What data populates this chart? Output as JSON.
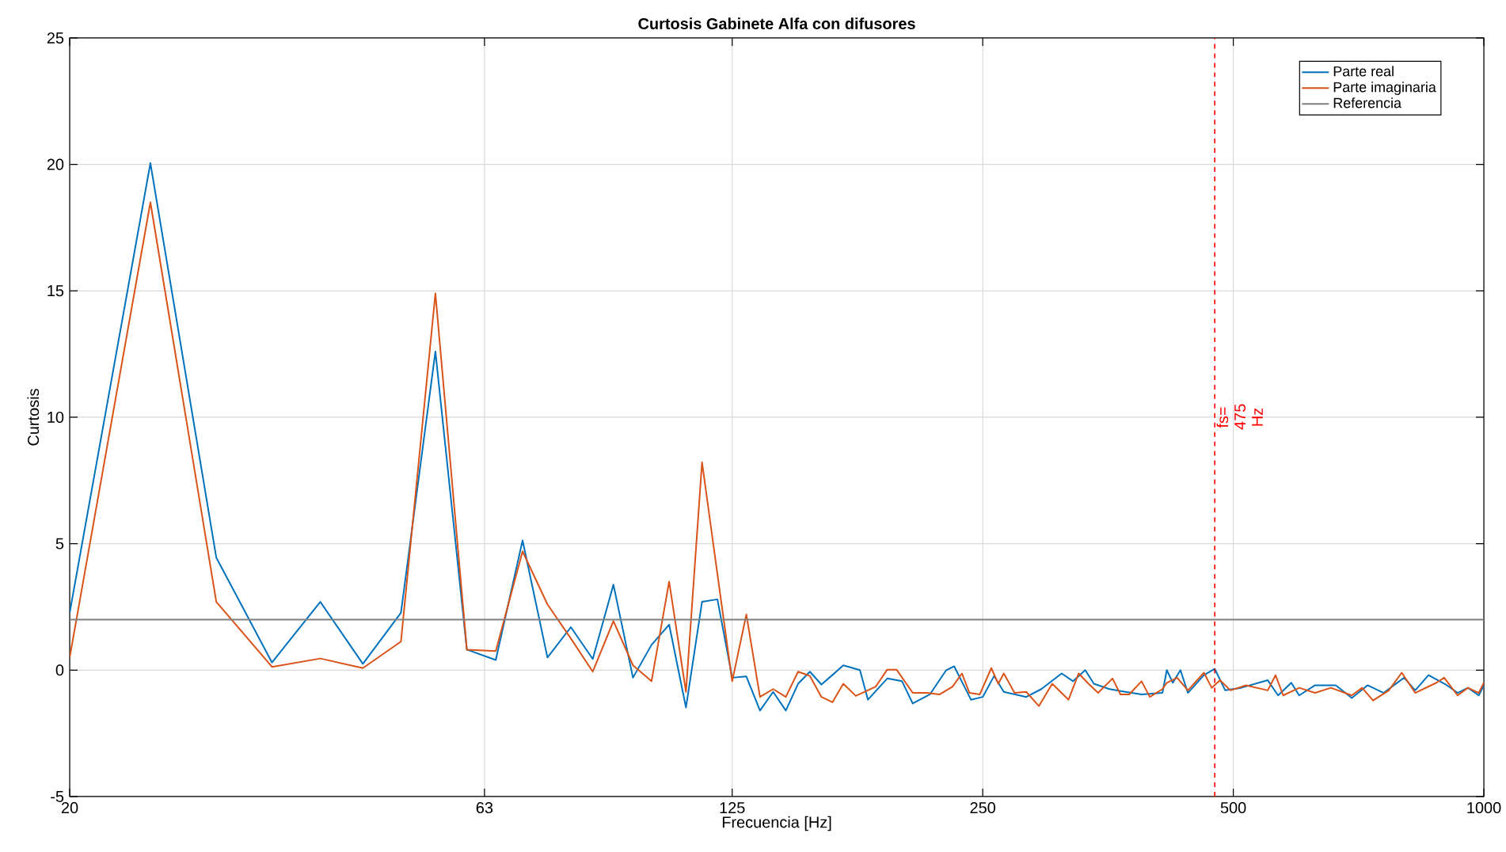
{
  "chart_data": {
    "type": "line",
    "title": "Curtosis Gabinete Alfa con difusores",
    "xlabel": "Frecuencia [Hz]",
    "ylabel": "Curtosis",
    "log": "x",
    "grid": true,
    "legend": "top right",
    "line_style": "solid",
    "xlim": [
      20,
      1000
    ],
    "ylim": [
      -5,
      25
    ],
    "xticks": [
      20,
      63,
      125,
      250,
      500,
      1000
    ],
    "yticks": [
      -5,
      0,
      5,
      10,
      15,
      20,
      25
    ],
    "series": [
      {
        "name": "Parte real",
        "color": "#0072bd",
        "x": [
          20,
          25,
          30,
          35,
          40,
          45,
          50,
          55,
          60,
          65,
          70,
          75,
          80,
          85,
          90,
          95,
          100,
          105,
          110,
          115,
          120,
          125,
          130,
          135,
          140,
          145,
          150,
          155,
          160,
          165,
          170,
          178,
          182,
          192,
          200,
          206,
          216,
          226,
          231,
          242,
          250,
          258,
          265,
          282,
          294,
          311,
          321,
          332,
          340,
          355,
          371,
          388,
          411,
          416,
          423,
          432,
          441,
          461,
          475,
          489,
          511,
          550,
          566,
          587,
          600,
          627,
          664,
          694,
          725,
          758,
          802,
          827,
          858,
          903,
          930,
          957,
          986,
          1000
        ],
        "values": [
          2.27,
          20.05,
          4.45,
          0.3,
          2.7,
          0.25,
          2.27,
          12.6,
          0.81,
          0.4,
          5.13,
          0.5,
          1.7,
          0.44,
          3.38,
          -0.3,
          1.0,
          1.8,
          -1.48,
          2.7,
          2.8,
          -0.3,
          -0.25,
          -1.6,
          -0.86,
          -1.6,
          -0.54,
          -0.06,
          -0.57,
          -0.19,
          0.19,
          0,
          -1.17,
          -0.33,
          -0.44,
          -1.32,
          -0.96,
          0,
          0.15,
          -1.17,
          -1.06,
          -0.23,
          -0.86,
          -1.06,
          -0.75,
          -0.13,
          -0.44,
          0,
          -0.54,
          -0.75,
          -0.86,
          -0.96,
          -0.9,
          0.0,
          -0.5,
          0.0,
          -0.9,
          -0.2,
          0.05,
          -0.8,
          -0.7,
          -0.4,
          -1.0,
          -0.5,
          -1.0,
          -0.6,
          -0.6,
          -1.1,
          -0.6,
          -0.9,
          -0.3,
          -0.8,
          -0.2,
          -0.6,
          -0.9,
          -0.7,
          -1.0,
          -0.6
        ]
      },
      {
        "name": "Parte imaginaria",
        "color": "#d95319",
        "x": [
          20,
          25,
          30,
          35,
          40,
          45,
          50,
          55,
          60,
          65,
          70,
          75,
          80,
          85,
          90,
          95,
          100,
          105,
          110,
          115,
          125,
          130,
          135,
          140,
          145,
          150,
          155,
          160,
          165,
          170,
          176,
          186,
          192,
          197,
          206,
          214,
          222,
          230,
          236,
          241,
          248,
          256,
          261,
          265,
          273,
          282,
          292,
          303,
          317,
          326,
          335,
          344,
          358,
          366,
          375,
          388,
          397,
          411,
          416,
          428,
          441,
          461,
          471,
          482,
          496,
          518,
          550,
          562,
          574,
          600,
          627,
          655,
          694,
          714,
          736,
          769,
          797,
          827,
          877,
          896,
          930,
          957,
          986,
          1000
        ],
        "values": [
          0.5,
          18.5,
          2.7,
          0.13,
          0.46,
          0.08,
          1.13,
          14.9,
          0.81,
          0.75,
          4.7,
          2.6,
          1.25,
          -0.06,
          1.94,
          0.19,
          -0.44,
          3.5,
          -0.86,
          8.22,
          -0.44,
          2.2,
          -1.06,
          -0.75,
          -1.06,
          -0.06,
          -0.23,
          -1.06,
          -1.27,
          -0.54,
          -1.02,
          -0.65,
          0.02,
          0.02,
          -0.9,
          -0.9,
          -0.96,
          -0.65,
          -0.13,
          -0.9,
          -0.96,
          0.08,
          -0.54,
          -0.13,
          -0.9,
          -0.86,
          -1.42,
          -0.54,
          -1.17,
          -0.13,
          -0.54,
          -0.9,
          -0.33,
          -0.96,
          -0.96,
          -0.44,
          -1.06,
          -0.75,
          -0.5,
          -0.3,
          -0.8,
          -0.1,
          -0.7,
          -0.4,
          -0.8,
          -0.6,
          -0.8,
          -0.2,
          -1.0,
          -0.7,
          -0.9,
          -0.7,
          -1.0,
          -0.7,
          -1.2,
          -0.8,
          -0.1,
          -0.9,
          -0.5,
          -0.3,
          -1.0,
          -0.7,
          -0.9,
          -0.5
        ]
      },
      {
        "name": "Referencia",
        "color": "#7f7f7f",
        "x": [
          20,
          1000
        ],
        "values": [
          2,
          2
        ]
      }
    ],
    "ref_lines": [
      {
        "axis": "x",
        "value": 475,
        "label": "fs= 475 Hz",
        "color": "#ff0000",
        "line_style": "dashed"
      }
    ]
  }
}
